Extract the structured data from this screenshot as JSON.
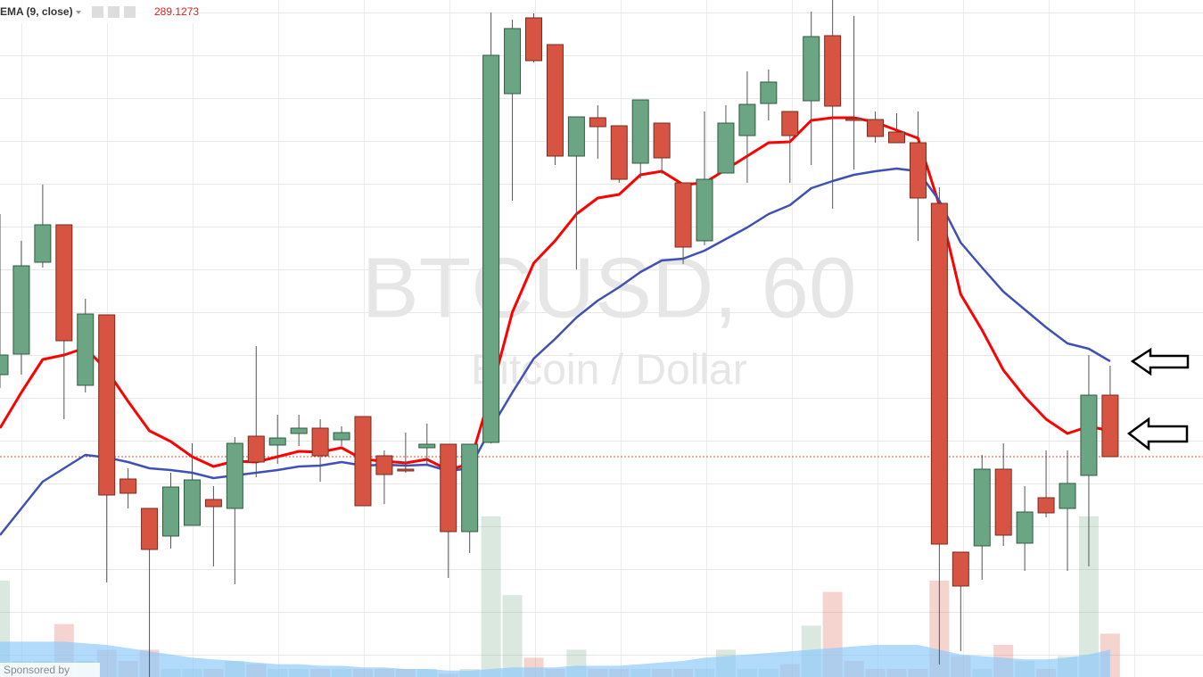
{
  "chart_data": {
    "type": "candlestick",
    "header": {
      "label": "EMA (9, close)",
      "value": 289.1273
    },
    "watermark": {
      "symbol": "BTCUSD, 60",
      "description": "Bitcoin / Dollar"
    },
    "footer": "Sponsored by",
    "ylim": [
      284.82,
      300
    ],
    "up_color": "#6ba583",
    "down_color": "#d75442",
    "open": [
      291.6,
      292.06,
      294.12,
      294.96,
      291.36,
      292.94,
      289.26,
      288.6,
      287.98,
      288.22,
      288.8,
      288.6,
      290.22,
      290.02,
      290.28,
      290.4,
      290.14,
      290.66,
      289.78,
      289.48,
      289.96,
      290.04,
      288.08,
      290.08,
      297.9,
      299.6,
      299,
      296.5,
      297.36,
      297.18,
      296.34,
      297.24,
      295.9,
      294.6,
      296.12,
      296.96,
      297.68,
      297.5,
      297.74,
      299.2,
      297.34,
      297.32,
      297.04,
      296.8,
      295.44,
      287.62,
      287.76,
      289.48,
      287.82,
      288.84,
      288.6,
      289.34,
      291.14
    ],
    "high": [
      295.2,
      294.6,
      295.86,
      294.96,
      293.3,
      292.94,
      289.5,
      288.6,
      289.4,
      290.06,
      289.1,
      290.2,
      292.24,
      290.7,
      290.7,
      290.6,
      290.44,
      290.66,
      289.9,
      290.3,
      290.5,
      290.04,
      290.04,
      299.72,
      299.56,
      299.7,
      299,
      297.38,
      297.64,
      297.18,
      297.76,
      297.24,
      295.9,
      297.5,
      297.64,
      298.4,
      298.44,
      297.5,
      299.74,
      300,
      299.64,
      297.5,
      297.46,
      297.5,
      295.8,
      287.62,
      289.8,
      290.06,
      289.1,
      289.9,
      289.9,
      292.04,
      291.8
    ],
    "low": [
      291.3,
      291.6,
      294,
      290.6,
      291.2,
      286.94,
      288.6,
      284.82,
      287.7,
      288.22,
      287.3,
      286.9,
      289.3,
      289.6,
      290,
      289.2,
      290,
      288.66,
      288.7,
      289.4,
      289.6,
      287.04,
      287.6,
      290.06,
      295.5,
      298.6,
      296.3,
      293.96,
      296.44,
      295.9,
      296,
      296.1,
      294.08,
      294.5,
      296.12,
      295.9,
      297.3,
      295.9,
      296.3,
      295.32,
      296.2,
      296.8,
      296.8,
      294.6,
      285.1,
      285.4,
      287,
      287.76,
      287.2,
      288.4,
      287.2,
      287.3,
      289.76
    ],
    "close": [
      292.04,
      294.04,
      294.96,
      292.36,
      292.96,
      288.9,
      288.94,
      287.68,
      289.08,
      289.24,
      288.64,
      290.06,
      289.64,
      290.18,
      290.4,
      289.78,
      290.3,
      288.66,
      289.36,
      289.44,
      290.04,
      288.08,
      290.04,
      298.76,
      299.36,
      298.64,
      296.5,
      297.38,
      297.16,
      295.98,
      297.76,
      296.46,
      294.46,
      295.98,
      297.24,
      297.66,
      298.16,
      296.96,
      299.18,
      297.62,
      297.3,
      296.94,
      296.8,
      295.56,
      287.8,
      286.86,
      289.48,
      288,
      288.52,
      288.5,
      289.16,
      291.14,
      289.76
    ],
    "indicators": [
      {
        "color": "#ff0000",
        "values": [
          290.4,
          291.2,
          291.94,
          292.04,
          292.2,
          291.7,
          291,
          290.34,
          290.1,
          289.76,
          289.54,
          289.66,
          289.64,
          289.76,
          289.88,
          289.86,
          289.96,
          289.7,
          289.66,
          289.62,
          289.7,
          289.46,
          289.6,
          291.2,
          293,
          294.1,
          294.6,
          295.2,
          295.56,
          295.64,
          296.08,
          296.16,
          295.86,
          295.9,
          296.2,
          296.5,
          296.8,
          296.82,
          297.3,
          297.36,
          297.36,
          297.26,
          297.08,
          296.9,
          295.4,
          293.4,
          292.6,
          291.7,
          291.1,
          290.6,
          290.28,
          290.44,
          290.34
        ]
      },
      {
        "color": "#3f51b5",
        "values": [
          288,
          288.6,
          289.2,
          289.5,
          289.8,
          289.74,
          289.64,
          289.5,
          289.46,
          289.4,
          289.28,
          289.34,
          289.4,
          289.46,
          289.54,
          289.56,
          289.64,
          289.56,
          289.58,
          289.56,
          289.58,
          289.44,
          289.5,
          290.4,
          291.2,
          291.96,
          292.4,
          292.88,
          293.26,
          293.56,
          293.9,
          294.16,
          294.2,
          294.38,
          294.64,
          294.9,
          295.2,
          295.4,
          295.78,
          295.94,
          296.08,
          296.16,
          296.22,
          296.16,
          295.5,
          294.56,
          294,
          293.46,
          293.06,
          292.66,
          292.3,
          292.18,
          291.9
        ]
      }
    ],
    "vlim": [
      0,
      100
    ],
    "volume": [
      60,
      10,
      10,
      33,
      10,
      17,
      10,
      17,
      5,
      5,
      5,
      10,
      8,
      5,
      5,
      5,
      5,
      5,
      5,
      5,
      5,
      2,
      5,
      100,
      51,
      12,
      5,
      17,
      5,
      5,
      5,
      5,
      5,
      5,
      17,
      5,
      5,
      8,
      32,
      53,
      10,
      5,
      5,
      5,
      60,
      13,
      5,
      20,
      10,
      5,
      13,
      100,
      27
    ],
    "volume_ma": {
      "color": "#90caf9",
      "values": [
        22,
        22,
        22,
        22,
        21,
        20,
        18,
        16,
        14,
        12,
        11,
        10,
        9,
        8,
        8,
        7,
        7,
        6,
        6,
        5,
        5,
        4,
        4,
        5,
        6,
        6,
        6,
        7,
        7,
        7,
        8,
        9,
        10,
        12,
        13,
        14,
        15,
        16,
        17,
        18,
        19,
        20,
        20,
        20,
        17,
        14,
        13,
        12,
        11,
        11,
        12,
        14,
        17
      ]
    }
  }
}
